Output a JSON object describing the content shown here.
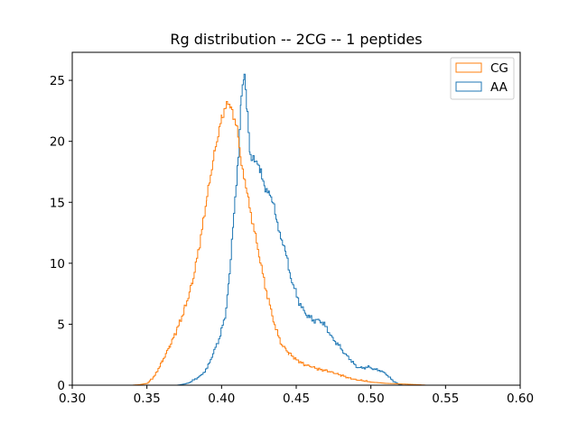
{
  "chart_data": {
    "type": "histogram",
    "title": "Rg distribution -- 2CG -- 1 peptides",
    "xlabel": "",
    "ylabel": "",
    "xlim": [
      0.3,
      0.6
    ],
    "ylim": [
      0,
      27.3
    ],
    "xticks": [
      0.3,
      0.35,
      0.4,
      0.45,
      0.5,
      0.55,
      0.6
    ],
    "xtick_labels": [
      "0.30",
      "0.35",
      "0.40",
      "0.45",
      "0.50",
      "0.55",
      "0.60"
    ],
    "yticks": [
      0,
      5,
      10,
      15,
      20,
      25
    ],
    "ytick_labels": [
      "0",
      "5",
      "10",
      "15",
      "20",
      "25"
    ],
    "histtype": "step",
    "grid": false,
    "legend_position": "upper right",
    "series": [
      {
        "name": "CG",
        "color": "#ff7f0e",
        "points": [
          [
            0.34,
            0.0
          ],
          [
            0.345,
            0.05
          ],
          [
            0.35,
            0.15
          ],
          [
            0.355,
            0.8
          ],
          [
            0.36,
            2.0
          ],
          [
            0.365,
            3.2
          ],
          [
            0.37,
            4.6
          ],
          [
            0.375,
            6.3
          ],
          [
            0.38,
            8.4
          ],
          [
            0.385,
            11.5
          ],
          [
            0.39,
            15.5
          ],
          [
            0.395,
            19.2
          ],
          [
            0.4,
            22.0
          ],
          [
            0.404,
            23.2
          ],
          [
            0.406,
            22.9
          ],
          [
            0.41,
            21.0
          ],
          [
            0.413,
            18.3
          ],
          [
            0.416,
            16.2
          ],
          [
            0.42,
            13.6
          ],
          [
            0.424,
            11.2
          ],
          [
            0.428,
            8.6
          ],
          [
            0.432,
            6.5
          ],
          [
            0.436,
            4.6
          ],
          [
            0.44,
            3.3
          ],
          [
            0.445,
            2.6
          ],
          [
            0.45,
            2.1
          ],
          [
            0.455,
            1.7
          ],
          [
            0.46,
            1.5
          ],
          [
            0.465,
            1.3
          ],
          [
            0.47,
            1.2
          ],
          [
            0.475,
            1.0
          ],
          [
            0.48,
            0.8
          ],
          [
            0.485,
            0.6
          ],
          [
            0.49,
            0.45
          ],
          [
            0.495,
            0.35
          ],
          [
            0.5,
            0.25
          ],
          [
            0.505,
            0.2
          ],
          [
            0.51,
            0.15
          ],
          [
            0.52,
            0.1
          ],
          [
            0.53,
            0.05
          ],
          [
            0.537,
            0.0
          ]
        ]
      },
      {
        "name": "AA",
        "color": "#1f77b4",
        "points": [
          [
            0.37,
            0.0
          ],
          [
            0.375,
            0.1
          ],
          [
            0.378,
            0.2
          ],
          [
            0.382,
            0.5
          ],
          [
            0.386,
            0.8
          ],
          [
            0.39,
            1.4
          ],
          [
            0.394,
            2.6
          ],
          [
            0.398,
            3.8
          ],
          [
            0.402,
            5.6
          ],
          [
            0.405,
            9.0
          ],
          [
            0.408,
            14.0
          ],
          [
            0.411,
            19.0
          ],
          [
            0.413,
            24.0
          ],
          [
            0.415,
            25.6
          ],
          [
            0.417,
            22.3
          ],
          [
            0.419,
            18.6
          ],
          [
            0.421,
            18.5
          ],
          [
            0.423,
            18.2
          ],
          [
            0.426,
            17.6
          ],
          [
            0.429,
            16.1
          ],
          [
            0.432,
            15.5
          ],
          [
            0.434,
            15.0
          ],
          [
            0.437,
            13.3
          ],
          [
            0.44,
            11.9
          ],
          [
            0.443,
            10.6
          ],
          [
            0.446,
            8.9
          ],
          [
            0.45,
            7.3
          ],
          [
            0.454,
            6.2
          ],
          [
            0.458,
            5.6
          ],
          [
            0.462,
            5.3
          ],
          [
            0.466,
            5.3
          ],
          [
            0.47,
            4.7
          ],
          [
            0.474,
            3.8
          ],
          [
            0.478,
            3.3
          ],
          [
            0.482,
            2.6
          ],
          [
            0.486,
            2.1
          ],
          [
            0.49,
            1.5
          ],
          [
            0.494,
            1.4
          ],
          [
            0.498,
            1.5
          ],
          [
            0.502,
            1.3
          ],
          [
            0.506,
            1.2
          ],
          [
            0.51,
            0.9
          ],
          [
            0.514,
            0.4
          ],
          [
            0.518,
            0.1
          ],
          [
            0.521,
            0.0
          ]
        ]
      }
    ]
  }
}
